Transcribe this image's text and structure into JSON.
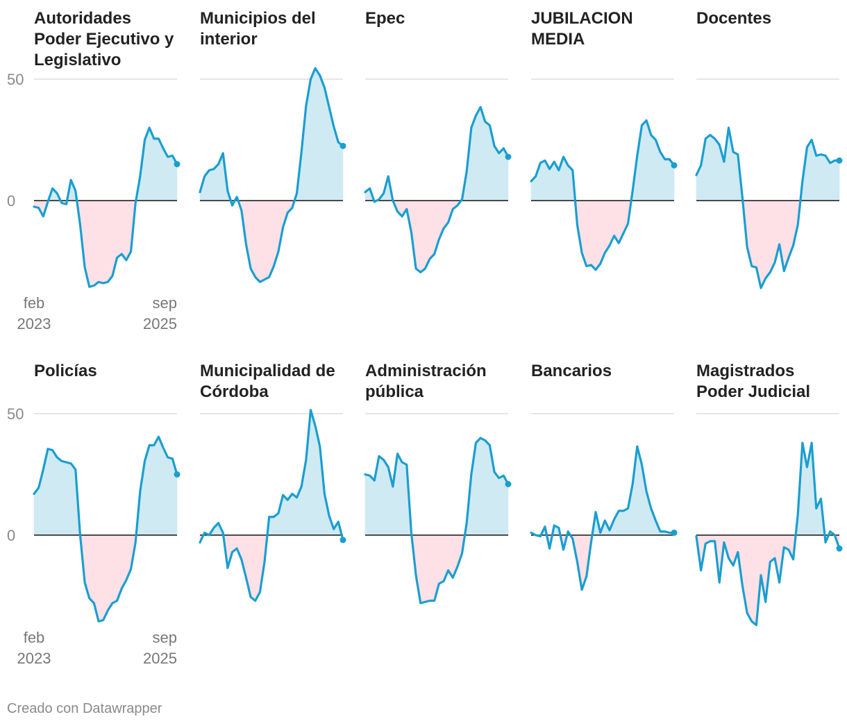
{
  "footer": {
    "credit": "Creado con Datawrapper"
  },
  "chart_data": {
    "type": "area",
    "xlabel": "",
    "ylabel": "",
    "ylim": [
      -40,
      50
    ],
    "yticks": [
      0,
      50
    ],
    "x_start_label": [
      "feb",
      "2023"
    ],
    "x_end_label": [
      "sep",
      "2025"
    ],
    "colors": {
      "line": "#1a9ed0",
      "positive_fill": "#cfeaf3",
      "negative_fill": "#fde1e6",
      "zero_line": "#111111",
      "grid": "#dddddd"
    },
    "series": [
      {
        "name": "Autoridades Poder Ejecutivo y Legislativo",
        "title_lines": [
          "Autoridades",
          "Poder Ejecutivo y",
          "Legislativo"
        ],
        "values": [
          -2.5,
          -3,
          -6.5,
          -0.5,
          5,
          3,
          -1,
          -1.5,
          8.5,
          4,
          -10,
          -27.5,
          -35.5,
          -35,
          -33.5,
          -34,
          -33.5,
          -31,
          -23.5,
          -22,
          -24.5,
          -21,
          -1,
          10,
          25,
          30,
          25.5,
          25.5,
          21.5,
          18,
          18.5,
          15
        ]
      },
      {
        "name": "Municipios del interior",
        "title_lines": [
          "Municipios del",
          "interior"
        ],
        "values": [
          3.5,
          10,
          12.5,
          13,
          15,
          19.5,
          4,
          -2,
          1.5,
          -4,
          -18,
          -28,
          -31.5,
          -33.5,
          -32.5,
          -31.5,
          -27,
          -21,
          -11,
          -5,
          -3,
          3,
          20,
          39,
          50,
          54.5,
          51.5,
          46.5,
          38.5,
          30.5,
          24,
          22.5
        ]
      },
      {
        "name": "Epec",
        "title_lines": [
          "Epec"
        ],
        "values": [
          3.5,
          5,
          -0.5,
          0.5,
          3,
          10,
          0,
          -4.5,
          -6.5,
          -3.5,
          -13,
          -28,
          -29.5,
          -28,
          -24,
          -22,
          -16,
          -11.5,
          -9,
          -3.5,
          -2,
          0.5,
          12,
          30,
          35,
          38.5,
          32.5,
          31,
          22.5,
          19.5,
          21.5,
          18
        ]
      },
      {
        "name": "JUBILACION MEDIA",
        "title_lines": [
          "JUBILACION",
          "MEDIA"
        ],
        "values": [
          8,
          10,
          15.5,
          16.5,
          13,
          16,
          12.5,
          18,
          14.5,
          12.5,
          -10,
          -21.5,
          -27,
          -26.5,
          -28.5,
          -26,
          -21.5,
          -18.5,
          -14.5,
          -17.5,
          -13.5,
          -9.5,
          4,
          18.5,
          31,
          33,
          27,
          25,
          20,
          17,
          17,
          14.5
        ]
      },
      {
        "name": "Docentes",
        "title_lines": [
          "Docentes"
        ],
        "values": [
          10.5,
          14.5,
          25.5,
          27,
          25.5,
          23,
          16,
          30,
          20,
          19,
          1,
          -19,
          -27,
          -27.5,
          -36,
          -32,
          -29.5,
          -25.5,
          -18,
          -29,
          -23.5,
          -18.5,
          -10,
          8,
          22,
          25,
          18.5,
          19,
          18.5,
          15.5,
          16.5,
          16.5
        ]
      },
      {
        "name": "Policías",
        "title_lines": [
          "Policías"
        ],
        "values": [
          17,
          19.5,
          27,
          35.5,
          35,
          32,
          30.5,
          30,
          29.5,
          27,
          0,
          -19.5,
          -26,
          -28,
          -35.5,
          -35,
          -31,
          -28,
          -27,
          -22,
          -18.5,
          -14,
          -3,
          18,
          30.5,
          37,
          37,
          40.5,
          36,
          32,
          31.5,
          25
        ]
      },
      {
        "name": "Municipalidad de Córdoba",
        "title_lines": [
          "Municipalidad de",
          "Córdoba"
        ],
        "values": [
          -3,
          1,
          0,
          3,
          5,
          1,
          -13.5,
          -7,
          -5.5,
          -10,
          -17.5,
          -25.5,
          -27,
          -23.5,
          -11,
          7.5,
          7.5,
          9,
          16.5,
          14.5,
          17,
          15.5,
          20,
          31,
          51.5,
          45,
          36.5,
          17,
          8,
          2.5,
          5.5,
          -2
        ]
      },
      {
        "name": "Administración pública",
        "title_lines": [
          "Administración",
          "pública"
        ],
        "values": [
          25,
          24.5,
          22.5,
          32.5,
          31,
          28,
          20,
          33.5,
          30,
          29,
          1,
          -16.5,
          -28,
          -27.5,
          -27,
          -27,
          -20,
          -19,
          -14.5,
          -17.5,
          -13,
          -7.5,
          5,
          25,
          38,
          40,
          39,
          37,
          26,
          23.5,
          24.5,
          21
        ]
      },
      {
        "name": "Bancarios",
        "title_lines": [
          "Bancarios"
        ],
        "values": [
          1,
          0,
          -0.5,
          3.5,
          -5.5,
          4,
          3,
          -6,
          1.5,
          -1.5,
          -11,
          -22.5,
          -17,
          -3,
          9.5,
          1,
          6,
          2,
          6.5,
          10,
          10,
          11,
          21,
          36.5,
          29,
          18,
          11,
          6,
          1.5,
          1.5,
          1,
          1
        ]
      },
      {
        "name": "Magistrados Poder Judicial",
        "title_lines": [
          "Magistrados",
          "Poder Judicial"
        ],
        "values": [
          -0.5,
          -14.5,
          -3.5,
          -2.5,
          -2.5,
          -19.5,
          -3,
          -9.5,
          -12.5,
          -7,
          -21,
          -32,
          -35.5,
          -37,
          -16.5,
          -27.5,
          -11,
          -9.5,
          -19.5,
          -5,
          -6,
          -10,
          8.5,
          38,
          28,
          38,
          11,
          15,
          -3,
          1.5,
          0,
          -5.5
        ]
      }
    ]
  }
}
